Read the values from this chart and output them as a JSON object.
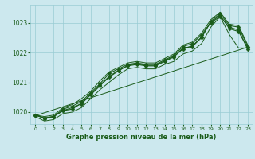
{
  "title": "Graphe pression niveau de la mer (hPa)",
  "x_values": [
    0,
    1,
    2,
    3,
    4,
    5,
    6,
    7,
    8,
    9,
    10,
    11,
    12,
    13,
    14,
    15,
    16,
    17,
    18,
    19,
    20,
    21,
    22,
    23
  ],
  "line_main1": [
    1019.9,
    1019.8,
    1019.85,
    1020.05,
    1020.1,
    1020.3,
    1020.6,
    1020.9,
    1021.2,
    1021.4,
    1021.55,
    1021.6,
    1021.55,
    1021.55,
    1021.7,
    1021.85,
    1022.15,
    1022.2,
    1022.5,
    1023.05,
    1023.3,
    1022.9,
    1022.85,
    1022.2
  ],
  "line_main2": [
    1019.9,
    1019.8,
    1019.85,
    1020.1,
    1020.2,
    1020.35,
    1020.65,
    1020.95,
    1021.3,
    1021.45,
    1021.6,
    1021.65,
    1021.6,
    1021.6,
    1021.75,
    1021.9,
    1022.2,
    1022.3,
    1022.6,
    1023.0,
    1023.2,
    1022.85,
    1022.75,
    1022.1
  ],
  "line_main3": [
    1019.9,
    1019.8,
    1019.85,
    1020.05,
    1020.15,
    1020.28,
    1020.58,
    1020.88,
    1021.18,
    1021.38,
    1021.57,
    1021.62,
    1021.57,
    1021.57,
    1021.72,
    1021.87,
    1022.12,
    1022.22,
    1022.52,
    1023.02,
    1023.25,
    1022.8,
    1022.7,
    1022.15
  ],
  "line_env_upper": [
    1019.9,
    1019.85,
    1019.9,
    1020.15,
    1020.25,
    1020.45,
    1020.7,
    1021.05,
    1021.35,
    1021.5,
    1021.65,
    1021.7,
    1021.65,
    1021.65,
    1021.8,
    1021.95,
    1022.25,
    1022.35,
    1022.65,
    1023.1,
    1023.35,
    1022.95,
    1022.9,
    1022.25
  ],
  "line_env_lower": [
    1019.85,
    1019.7,
    1019.75,
    1019.95,
    1020.0,
    1020.15,
    1020.45,
    1020.75,
    1021.0,
    1021.25,
    1021.45,
    1021.5,
    1021.45,
    1021.45,
    1021.6,
    1021.7,
    1021.95,
    1022.05,
    1022.3,
    1022.85,
    1023.2,
    1022.6,
    1022.15,
    1022.15
  ],
  "line_diagonal": [
    1019.88,
    1019.98,
    1020.08,
    1020.18,
    1020.28,
    1020.38,
    1020.48,
    1020.58,
    1020.68,
    1020.78,
    1020.88,
    1020.98,
    1021.08,
    1021.18,
    1021.28,
    1021.38,
    1021.48,
    1021.58,
    1021.68,
    1021.78,
    1021.88,
    1021.98,
    1022.08,
    1022.18
  ],
  "ylim": [
    1019.6,
    1023.6
  ],
  "yticks": [
    1020,
    1021,
    1022,
    1023
  ],
  "xticks": [
    0,
    1,
    2,
    3,
    4,
    5,
    6,
    7,
    8,
    9,
    10,
    11,
    12,
    13,
    14,
    15,
    16,
    17,
    18,
    19,
    20,
    21,
    22,
    23
  ],
  "line_color": "#1a5c1a",
  "bg_color": "#cce8ee",
  "grid_color": "#99ccd4",
  "text_color": "#1a5c1a",
  "marker_size": 2.5
}
